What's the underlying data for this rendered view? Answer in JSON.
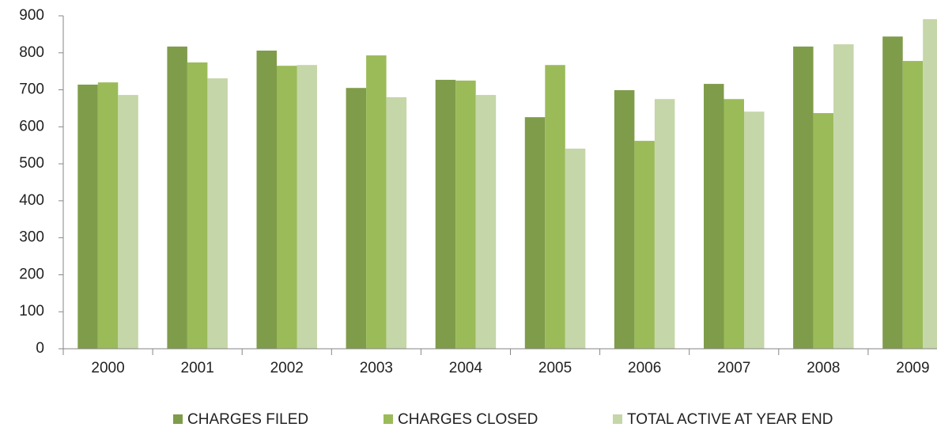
{
  "chart_data": {
    "type": "bar",
    "categories": [
      "2000",
      "2001",
      "2002",
      "2003",
      "2004",
      "2005",
      "2006",
      "2007",
      "2008",
      "2009"
    ],
    "series": [
      {
        "name": "CHARGES FILED",
        "color": "#7f9c4a",
        "values": [
          714,
          817,
          806,
          705,
          727,
          626,
          699,
          716,
          817,
          844
        ]
      },
      {
        "name": "CHARGES CLOSED",
        "color": "#9bbb59",
        "values": [
          720,
          774,
          765,
          793,
          725,
          767,
          562,
          675,
          637,
          778
        ]
      },
      {
        "name": "TOTAL ACTIVE AT YEAR END",
        "color": "#c5d6a8",
        "values": [
          686,
          731,
          767,
          680,
          686,
          541,
          675,
          641,
          823,
          891
        ]
      }
    ],
    "ylim": [
      0,
      900
    ],
    "yticks": [
      0,
      100,
      200,
      300,
      400,
      500,
      600,
      700,
      800,
      900
    ],
    "grid": false,
    "legend": "bottom"
  }
}
